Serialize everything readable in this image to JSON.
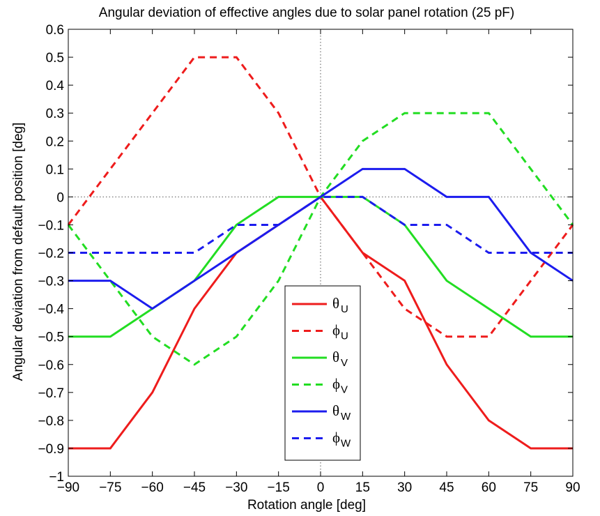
{
  "chart_data": {
    "type": "line",
    "title": "Angular deviation of effective angles due to solar panel rotation (25 pF)",
    "xlabel": "Rotation angle [deg]",
    "ylabel": "Angular deviation from default position [deg]",
    "xlim": [
      -90,
      90
    ],
    "ylim": [
      -1,
      0.6
    ],
    "xticks": [
      -90,
      -75,
      -60,
      -45,
      -30,
      -15,
      0,
      15,
      30,
      45,
      60,
      75,
      90
    ],
    "yticks": [
      -1,
      -0.9,
      -0.8,
      -0.7,
      -0.6,
      -0.5,
      -0.4,
      -0.3,
      -0.2,
      -0.1,
      0,
      0.1,
      0.2,
      0.3,
      0.4,
      0.5,
      0.6
    ],
    "x": [
      -90,
      -75,
      -60,
      -45,
      -30,
      -15,
      0,
      15,
      30,
      45,
      60,
      75,
      90
    ],
    "grid": false,
    "zero_lines": "dotted",
    "legend_position": "lower-center",
    "series": [
      {
        "name": "θ",
        "sub": "U",
        "color": "#ee1c1c",
        "dash": "solid",
        "values": [
          -0.9,
          -0.9,
          -0.7,
          -0.4,
          -0.2,
          -0.1,
          0,
          -0.2,
          -0.3,
          -0.6,
          -0.8,
          -0.9,
          -0.9
        ]
      },
      {
        "name": "ϕ",
        "sub": "U",
        "color": "#ee1c1c",
        "dash": "dashed",
        "values": [
          -0.1,
          0.1,
          0.3,
          0.5,
          0.5,
          0.3,
          0,
          -0.2,
          -0.4,
          -0.5,
          -0.5,
          -0.3,
          -0.1
        ]
      },
      {
        "name": "θ",
        "sub": "V",
        "color": "#22dd22",
        "dash": "solid",
        "values": [
          -0.5,
          -0.5,
          -0.4,
          -0.3,
          -0.1,
          0,
          0,
          0,
          -0.1,
          -0.3,
          -0.4,
          -0.5,
          -0.5
        ]
      },
      {
        "name": "ϕ",
        "sub": "V",
        "color": "#22dd22",
        "dash": "dashed",
        "values": [
          -0.1,
          -0.3,
          -0.5,
          -0.6,
          -0.5,
          -0.3,
          0,
          0.2,
          0.3,
          0.3,
          0.3,
          0.1,
          -0.1
        ]
      },
      {
        "name": "θ",
        "sub": "W",
        "color": "#1c1cee",
        "dash": "solid",
        "values": [
          -0.3,
          -0.3,
          -0.4,
          -0.3,
          -0.2,
          -0.1,
          0,
          0.1,
          0.1,
          0,
          0,
          -0.2,
          -0.3
        ]
      },
      {
        "name": "ϕ",
        "sub": "W",
        "color": "#1c1cee",
        "dash": "dashed",
        "values": [
          -0.2,
          -0.2,
          -0.2,
          -0.2,
          -0.1,
          -0.1,
          0,
          0,
          -0.1,
          -0.1,
          -0.2,
          -0.2,
          -0.2
        ]
      }
    ]
  }
}
